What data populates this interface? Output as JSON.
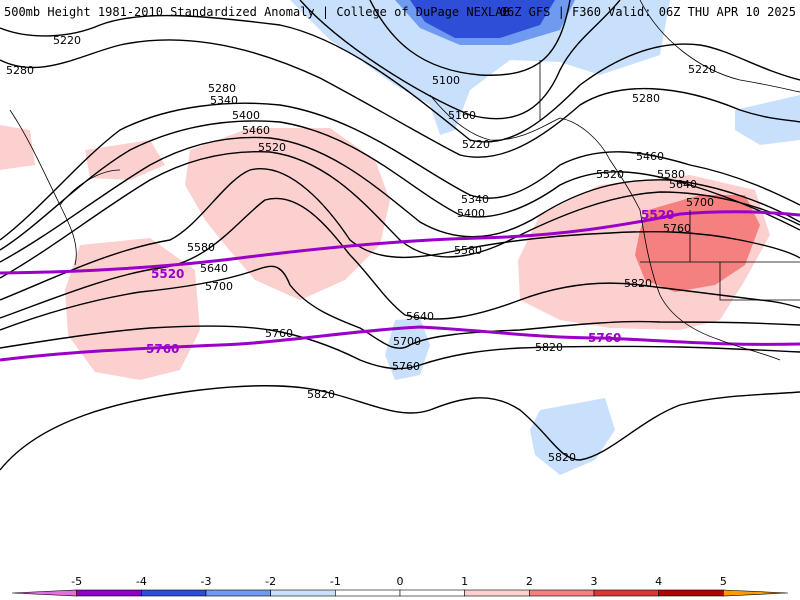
{
  "header": {
    "title_left": "500mb Height 1981-2010 Standardized Anomaly | College of DuPage NEXLAB",
    "title_right": "06Z GFS | F360 Valid: 06Z THU APR 10 2025"
  },
  "colors": {
    "neg5": "#e26ee2",
    "neg4": "#8f00c7",
    "neg3": "#2e4ed8",
    "neg2": "#6e9af0",
    "neg1": "#c8e0fb",
    "zero": "#ffffff",
    "pos1": "#fdd0d0",
    "pos2": "#f48080",
    "pos3": "#d73838",
    "pos4": "#b40000",
    "pos5": "#ff9c00",
    "contour": "#000000",
    "highlight": "#9b00c8",
    "coast": "#000000"
  },
  "contour_labels": {
    "c5220_a": "5220",
    "c5280_a": "5280",
    "c5100": "5100",
    "c5220_b": "5220",
    "c5280_b": "5280",
    "c5160": "5160",
    "c5220_c": "5220",
    "c5280_c": "5280",
    "c5340_a": "5340",
    "c5400_a": "5400",
    "c5460_a": "5460",
    "c5520_a": "5520",
    "c5340_b": "5340",
    "c5400_b": "5400",
    "c5580_a": "5580",
    "c5580_b": "5580",
    "c5640_a": "5640",
    "c5700_a": "5700",
    "c5760_a": "5760",
    "c5640_b": "5640",
    "c5700_b": "5700",
    "c5760_b": "5760",
    "c5460_b": "5460",
    "c5520_b": "5520",
    "c5580_c": "5580",
    "c5640_c": "5640",
    "c5700_c": "5700",
    "c5760_c": "5760",
    "c5820_a": "5820",
    "c5820_b": "5820",
    "c5820_c": "5820",
    "c5820_d": "5820",
    "hl5520_a": "5520",
    "hl5520_b": "5520",
    "hl5760_a": "5760",
    "hl5760_b": "5760"
  },
  "colorbar": {
    "ticks": [
      "-5",
      "-4",
      "-3",
      "-2",
      "-1",
      "0",
      "1",
      "2",
      "3",
      "4",
      "5"
    ]
  }
}
